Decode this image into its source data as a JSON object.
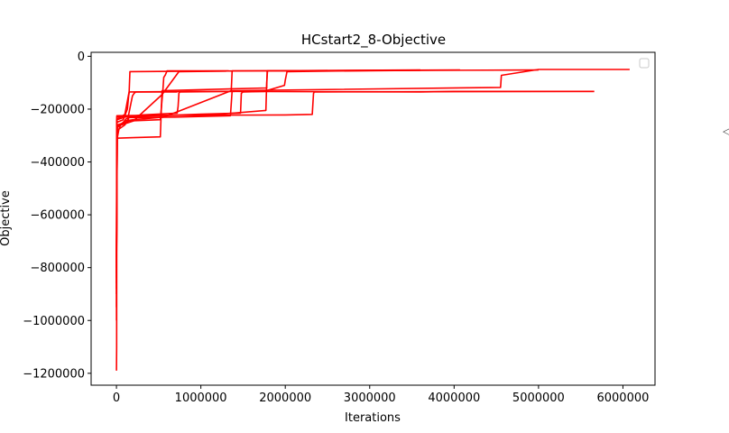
{
  "side_glyph": "◁",
  "chart_data": {
    "type": "line",
    "title": "HCstart2_8-Objective",
    "xlabel": "Iterations",
    "ylabel": "Objective",
    "xlim": [
      -300000,
      6380000
    ],
    "ylim": [
      -1245000,
      15000
    ],
    "xticks": [
      0,
      1000000,
      2000000,
      3000000,
      4000000,
      5000000,
      6000000
    ],
    "xtick_labels": [
      "0",
      "1000000",
      "2000000",
      "3000000",
      "4000000",
      "5000000",
      "6000000"
    ],
    "yticks": [
      0,
      -200000,
      -400000,
      -600000,
      -800000,
      -1000000,
      -1200000
    ],
    "ytick_labels": [
      "0",
      "−200000",
      "−400000",
      "−600000",
      "−800000",
      "−1000000",
      "−1200000"
    ],
    "grid": false,
    "legend": "top-right",
    "color": "#ff0000",
    "series": [
      {
        "points": [
          [
            0,
            -1190000
          ],
          [
            2000,
            -1100000
          ],
          [
            5000,
            -320000
          ],
          [
            15000,
            -300000
          ],
          [
            30000,
            -275000
          ],
          [
            50000,
            -260000
          ],
          [
            80000,
            -250000
          ],
          [
            120000,
            -235000
          ],
          [
            150000,
            -232000
          ],
          [
            700000,
            -230000
          ],
          [
            1350000,
            -225000
          ],
          [
            1370000,
            -130000
          ],
          [
            4550000,
            -118000
          ],
          [
            4560000,
            -72000
          ],
          [
            5000000,
            -50000
          ],
          [
            6080000,
            -50000
          ]
        ]
      },
      {
        "points": [
          [
            0,
            -1000000
          ],
          [
            3000,
            -240000
          ],
          [
            60000,
            -228000
          ],
          [
            100000,
            -220000
          ],
          [
            150000,
            -135000
          ],
          [
            1000000,
            -133000
          ],
          [
            3600000,
            -135000
          ],
          [
            4000000,
            -133000
          ],
          [
            5660000,
            -133000
          ]
        ]
      },
      {
        "points": [
          [
            0,
            -900000
          ],
          [
            4000,
            -310000
          ],
          [
            200000,
            -308000
          ],
          [
            520000,
            -305000
          ],
          [
            530000,
            -210000
          ],
          [
            540000,
            -130000
          ],
          [
            1780000,
            -120000
          ],
          [
            1785000,
            -55000
          ],
          [
            2000000,
            -55000
          ],
          [
            4070000,
            -52000
          ]
        ]
      },
      {
        "points": [
          [
            0,
            -950000
          ],
          [
            5000,
            -250000
          ],
          [
            80000,
            -240000
          ],
          [
            130000,
            -200000
          ],
          [
            145000,
            -150000
          ],
          [
            150000,
            -140000
          ],
          [
            160000,
            -58000
          ],
          [
            1000000,
            -56000
          ],
          [
            3600000,
            -52000
          ]
        ]
      },
      {
        "points": [
          [
            0,
            -880000
          ],
          [
            5000,
            -240000
          ],
          [
            120000,
            -228000
          ],
          [
            500000,
            -225000
          ],
          [
            1000000,
            -219000
          ],
          [
            1470000,
            -215000
          ],
          [
            1480000,
            -140000
          ],
          [
            1500000,
            -135000
          ],
          [
            1750000,
            -133000
          ],
          [
            1990000,
            -110000
          ],
          [
            2000000,
            -90000
          ],
          [
            2020000,
            -58000
          ],
          [
            2500000,
            -56000
          ],
          [
            3600000,
            -53000
          ]
        ]
      },
      {
        "points": [
          [
            0,
            -860000
          ],
          [
            5000,
            -230000
          ],
          [
            150000,
            -226000
          ],
          [
            600000,
            -224000
          ],
          [
            1200000,
            -220000
          ],
          [
            1770000,
            -205000
          ],
          [
            1780000,
            -100000
          ],
          [
            1790000,
            -55000
          ],
          [
            2500000,
            -54000
          ]
        ]
      },
      {
        "points": [
          [
            0,
            -840000
          ],
          [
            5000,
            -225000
          ],
          [
            200000,
            -224000
          ],
          [
            2000000,
            -222000
          ],
          [
            2320000,
            -220000
          ],
          [
            2335000,
            -140000
          ],
          [
            2345000,
            -135000
          ],
          [
            5660000,
            -133000
          ]
        ]
      },
      {
        "points": [
          [
            0,
            -800000
          ],
          [
            10000,
            -280000
          ],
          [
            100000,
            -260000
          ],
          [
            130000,
            -245000
          ],
          [
            170000,
            -180000
          ],
          [
            190000,
            -150000
          ],
          [
            210000,
            -140000
          ],
          [
            230000,
            -135000
          ],
          [
            720000,
            -135000
          ]
        ]
      },
      {
        "points": [
          [
            0,
            -820000
          ],
          [
            8000,
            -270000
          ],
          [
            100000,
            -245000
          ],
          [
            200000,
            -240000
          ],
          [
            560000,
            -230000
          ],
          [
            1360000,
            -130000
          ],
          [
            1370000,
            -55000
          ],
          [
            2000000,
            -55000
          ],
          [
            5000000,
            -52000
          ]
        ]
      },
      {
        "points": [
          [
            0,
            -780000
          ],
          [
            10000,
            -260000
          ],
          [
            150000,
            -245000
          ],
          [
            520000,
            -240000
          ],
          [
            550000,
            -130000
          ],
          [
            560000,
            -80000
          ],
          [
            580000,
            -70000
          ],
          [
            600000,
            -55000
          ],
          [
            1330000,
            -55000
          ]
        ]
      },
      {
        "points": [
          [
            0,
            -770000
          ],
          [
            10000,
            -265000
          ],
          [
            200000,
            -245000
          ],
          [
            540000,
            -145000
          ],
          [
            740000,
            -58000
          ],
          [
            1300000,
            -56000
          ]
        ]
      },
      {
        "points": [
          [
            0,
            -760000
          ],
          [
            10000,
            -262000
          ],
          [
            130000,
            -250000
          ],
          [
            150000,
            -228000
          ],
          [
            300000,
            -222000
          ],
          [
            720000,
            -215000
          ],
          [
            730000,
            -190000
          ],
          [
            740000,
            -140000
          ],
          [
            750000,
            -135000
          ],
          [
            1400000,
            -133000
          ]
        ]
      }
    ]
  }
}
